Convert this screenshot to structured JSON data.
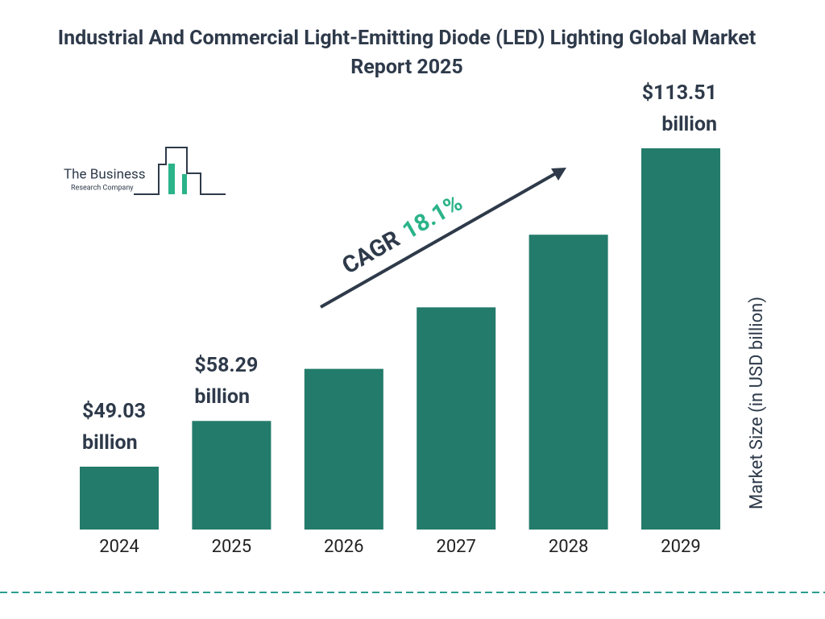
{
  "chart_data": {
    "type": "bar",
    "title": "Industrial And Commercial Light-Emitting Diode (LED) Lighting Global Market Report 2025",
    "categories": [
      "2024",
      "2025",
      "2026",
      "2027",
      "2028",
      "2029"
    ],
    "values": [
      49.03,
      58.29,
      68.84,
      81.3,
      96.01,
      113.51
    ],
    "value_labels": [
      "$49.03 billion",
      "$58.29 billion",
      null,
      null,
      null,
      "$113.51 billion"
    ],
    "color": "#237b6b",
    "y_label": "Market Size (in USD billion)",
    "annotation": {
      "label": "CAGR",
      "value": "18.1%"
    },
    "logo": {
      "line1": "The Business",
      "line2": "Research Company"
    }
  }
}
